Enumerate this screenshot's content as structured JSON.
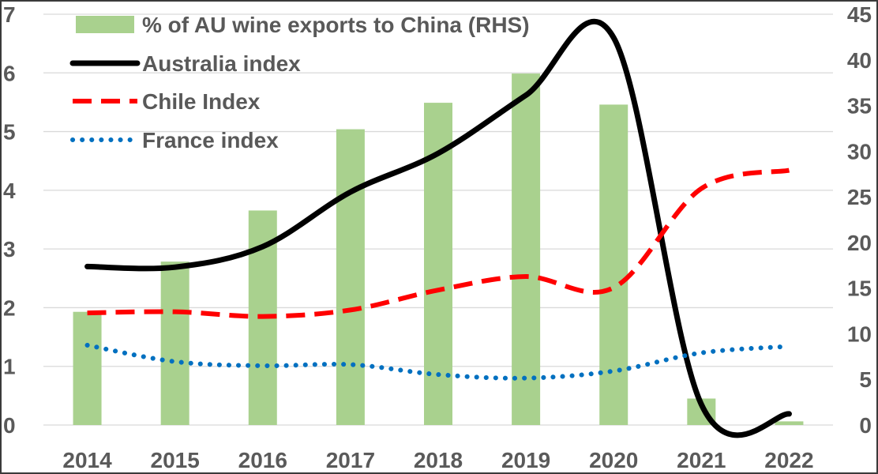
{
  "chart_data": {
    "type": "bar+line",
    "categories": [
      "2014",
      "2015",
      "2016",
      "2017",
      "2018",
      "2019",
      "2020",
      "2021",
      "2022"
    ],
    "left_axis": {
      "ylim": [
        0,
        7
      ],
      "ticks": [
        "0",
        "1",
        "2",
        "3",
        "4",
        "5",
        "6",
        "7"
      ]
    },
    "right_axis": {
      "ylim": [
        0,
        45
      ],
      "ticks": [
        "0",
        "5",
        "10",
        "15",
        "20",
        "25",
        "30",
        "35",
        "40",
        "45"
      ]
    },
    "grid": true,
    "legend_position": "top-left",
    "series": [
      {
        "name": "% of AU wine exports to China (RHS)",
        "type": "bar",
        "axis": "right",
        "color": "#a9d18e",
        "values": [
          12.4,
          17.9,
          23.5,
          32.4,
          35.3,
          38.5,
          35.1,
          2.9,
          0.4
        ]
      },
      {
        "name": "Australia index",
        "type": "line",
        "axis": "left",
        "color": "#000000",
        "dash": "solid",
        "values": [
          2.7,
          2.69,
          3.04,
          3.97,
          4.63,
          5.62,
          6.6,
          0.35,
          0.19
        ]
      },
      {
        "name": "Chile Index",
        "type": "line",
        "axis": "left",
        "color": "#ff0000",
        "dash": "dashed",
        "values": [
          1.91,
          1.93,
          1.85,
          1.96,
          2.3,
          2.53,
          2.34,
          4.03,
          4.34
        ]
      },
      {
        "name": "France index",
        "type": "line",
        "axis": "left",
        "color": "#0070c0",
        "dash": "dotted",
        "values": [
          1.36,
          1.08,
          1.01,
          1.03,
          0.86,
          0.8,
          0.92,
          1.23,
          1.34
        ]
      }
    ]
  }
}
